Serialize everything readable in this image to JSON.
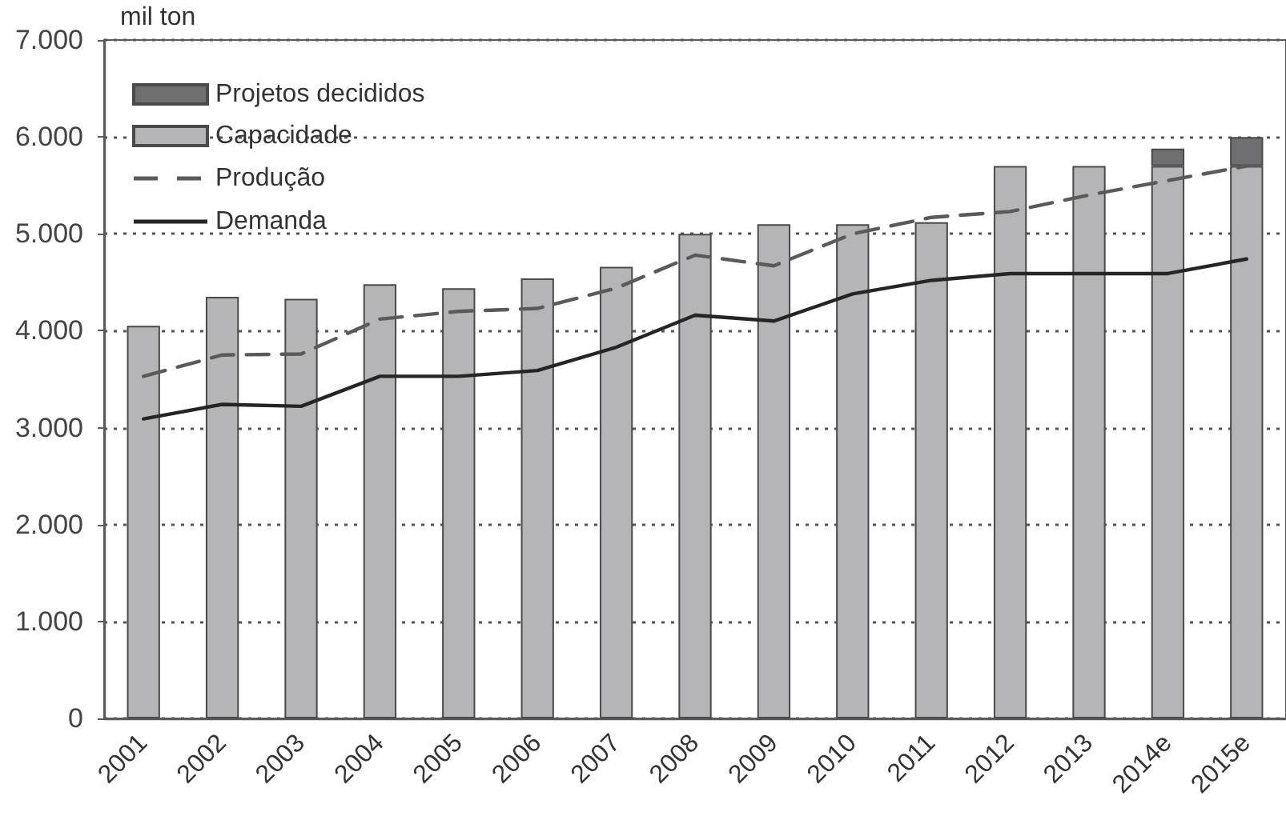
{
  "chart_data": {
    "type": "bar",
    "stacked": true,
    "ylabel": "mil ton",
    "categories": [
      "2001",
      "2002",
      "2003",
      "2004",
      "2005",
      "2006",
      "2007",
      "2008",
      "2009",
      "2010",
      "2011",
      "2012",
      "2013",
      "2014e",
      "2015e"
    ],
    "series": [
      {
        "name": "Capacidade",
        "color": "#b5b5b7",
        "values": [
          4050,
          4350,
          4330,
          4480,
          4440,
          4540,
          4660,
          5000,
          5100,
          5100,
          5120,
          5700,
          5700,
          5700,
          5700
        ]
      },
      {
        "name": "Projetos decididos",
        "color": "#6e6e70",
        "values": [
          null,
          null,
          null,
          null,
          null,
          null,
          null,
          null,
          null,
          null,
          null,
          null,
          null,
          180,
          300
        ]
      },
      {
        "name": "Produção",
        "type": "line",
        "color": "#5a5a5a",
        "line_style": "dashed",
        "values": [
          3530,
          3750,
          3760,
          4120,
          4200,
          4230,
          4440,
          4780,
          4670,
          5000,
          5170,
          5230,
          5400,
          5550,
          5700
        ]
      },
      {
        "name": "Demanda",
        "type": "line",
        "color": "#252525",
        "line_style": "solid",
        "values": [
          3090,
          3240,
          3220,
          3530,
          3530,
          3590,
          3830,
          4160,
          4100,
          4380,
          4520,
          4590,
          4590,
          4590,
          4740
        ]
      }
    ],
    "ylim": [
      0,
      7000
    ],
    "yticks": [
      0,
      {
        "value": 1000,
        "label": "1.000"
      },
      {
        "value": 2000,
        "label": "2.000"
      },
      {
        "value": 3000,
        "label": "3.000"
      },
      {
        "value": 4000,
        "label": "4.000"
      },
      {
        "value": 5000,
        "label": "5.000"
      },
      {
        "value": 6000,
        "label": "6.000"
      },
      {
        "value": 7000,
        "label": "7.000"
      }
    ],
    "grid": "y",
    "legend": "top left",
    "marker": "none"
  }
}
